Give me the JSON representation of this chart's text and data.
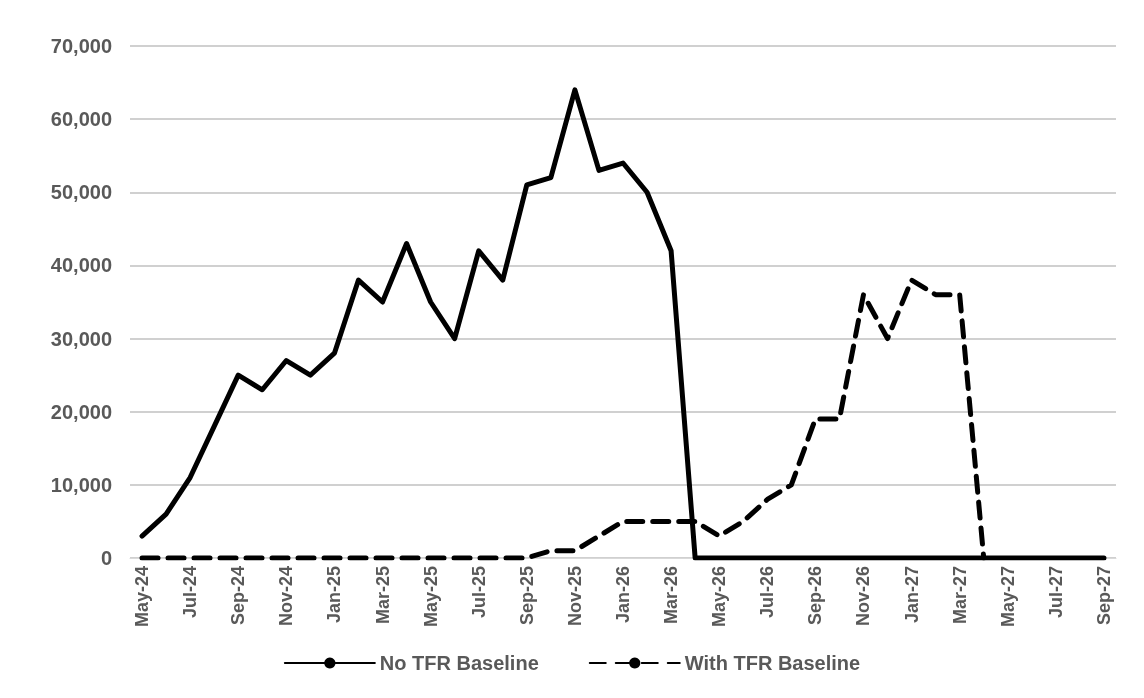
{
  "chart_data": {
    "type": "line",
    "categories": [
      "May-24",
      null,
      "Jul-24",
      null,
      "Sep-24",
      null,
      "Nov-24",
      null,
      "Jan-25",
      null,
      "Mar-25",
      null,
      "May-25",
      null,
      "Jul-25",
      null,
      "Sep-25",
      null,
      "Nov-25",
      null,
      "Jan-26",
      null,
      "Mar-26",
      null,
      "May-26",
      null,
      "Jul-26",
      null,
      "Sep-26",
      null,
      "Nov-26",
      null,
      "Jan-27",
      null,
      "Mar-27",
      null,
      "May-27",
      null,
      "Jul-27",
      null,
      "Sep-27"
    ],
    "series": [
      {
        "name": "No TFR Baseline",
        "color": "#000000",
        "line_style": "solid",
        "values": [
          3000,
          6000,
          11000,
          18000,
          25000,
          23000,
          27000,
          25000,
          28000,
          38000,
          35000,
          43000,
          35000,
          30000,
          42000,
          38000,
          51000,
          52000,
          64000,
          53000,
          54000,
          50000,
          42000,
          0,
          0,
          0,
          0,
          0,
          0,
          0,
          0,
          0,
          0,
          0,
          0,
          0,
          0,
          0,
          0,
          0,
          0
        ]
      },
      {
        "name": "With TFR Baseline",
        "color": "#000000",
        "line_style": "dashed",
        "values": [
          0,
          0,
          0,
          0,
          0,
          0,
          0,
          0,
          0,
          0,
          0,
          0,
          0,
          0,
          0,
          0,
          0,
          1000,
          1000,
          3000,
          5000,
          5000,
          5000,
          5000,
          3000,
          5000,
          8000,
          10000,
          19000,
          19000,
          36000,
          30000,
          38000,
          36000,
          36000,
          0,
          null,
          null,
          null,
          null,
          null
        ]
      }
    ],
    "ylim": [
      0,
      70000
    ],
    "yticks": [
      0,
      {
        "value": 10000,
        "label": "10,000"
      },
      {
        "value": 20000,
        "label": "20,000"
      },
      {
        "value": 30000,
        "label": "30,000"
      },
      {
        "value": 40000,
        "label": "40,000"
      },
      {
        "value": 50000,
        "label": "50,000"
      },
      {
        "value": 60000,
        "label": "60,000"
      },
      {
        "value": 70000,
        "label": "70,000"
      }
    ],
    "grid": "y",
    "legend": "bottom",
    "marker": "none"
  }
}
